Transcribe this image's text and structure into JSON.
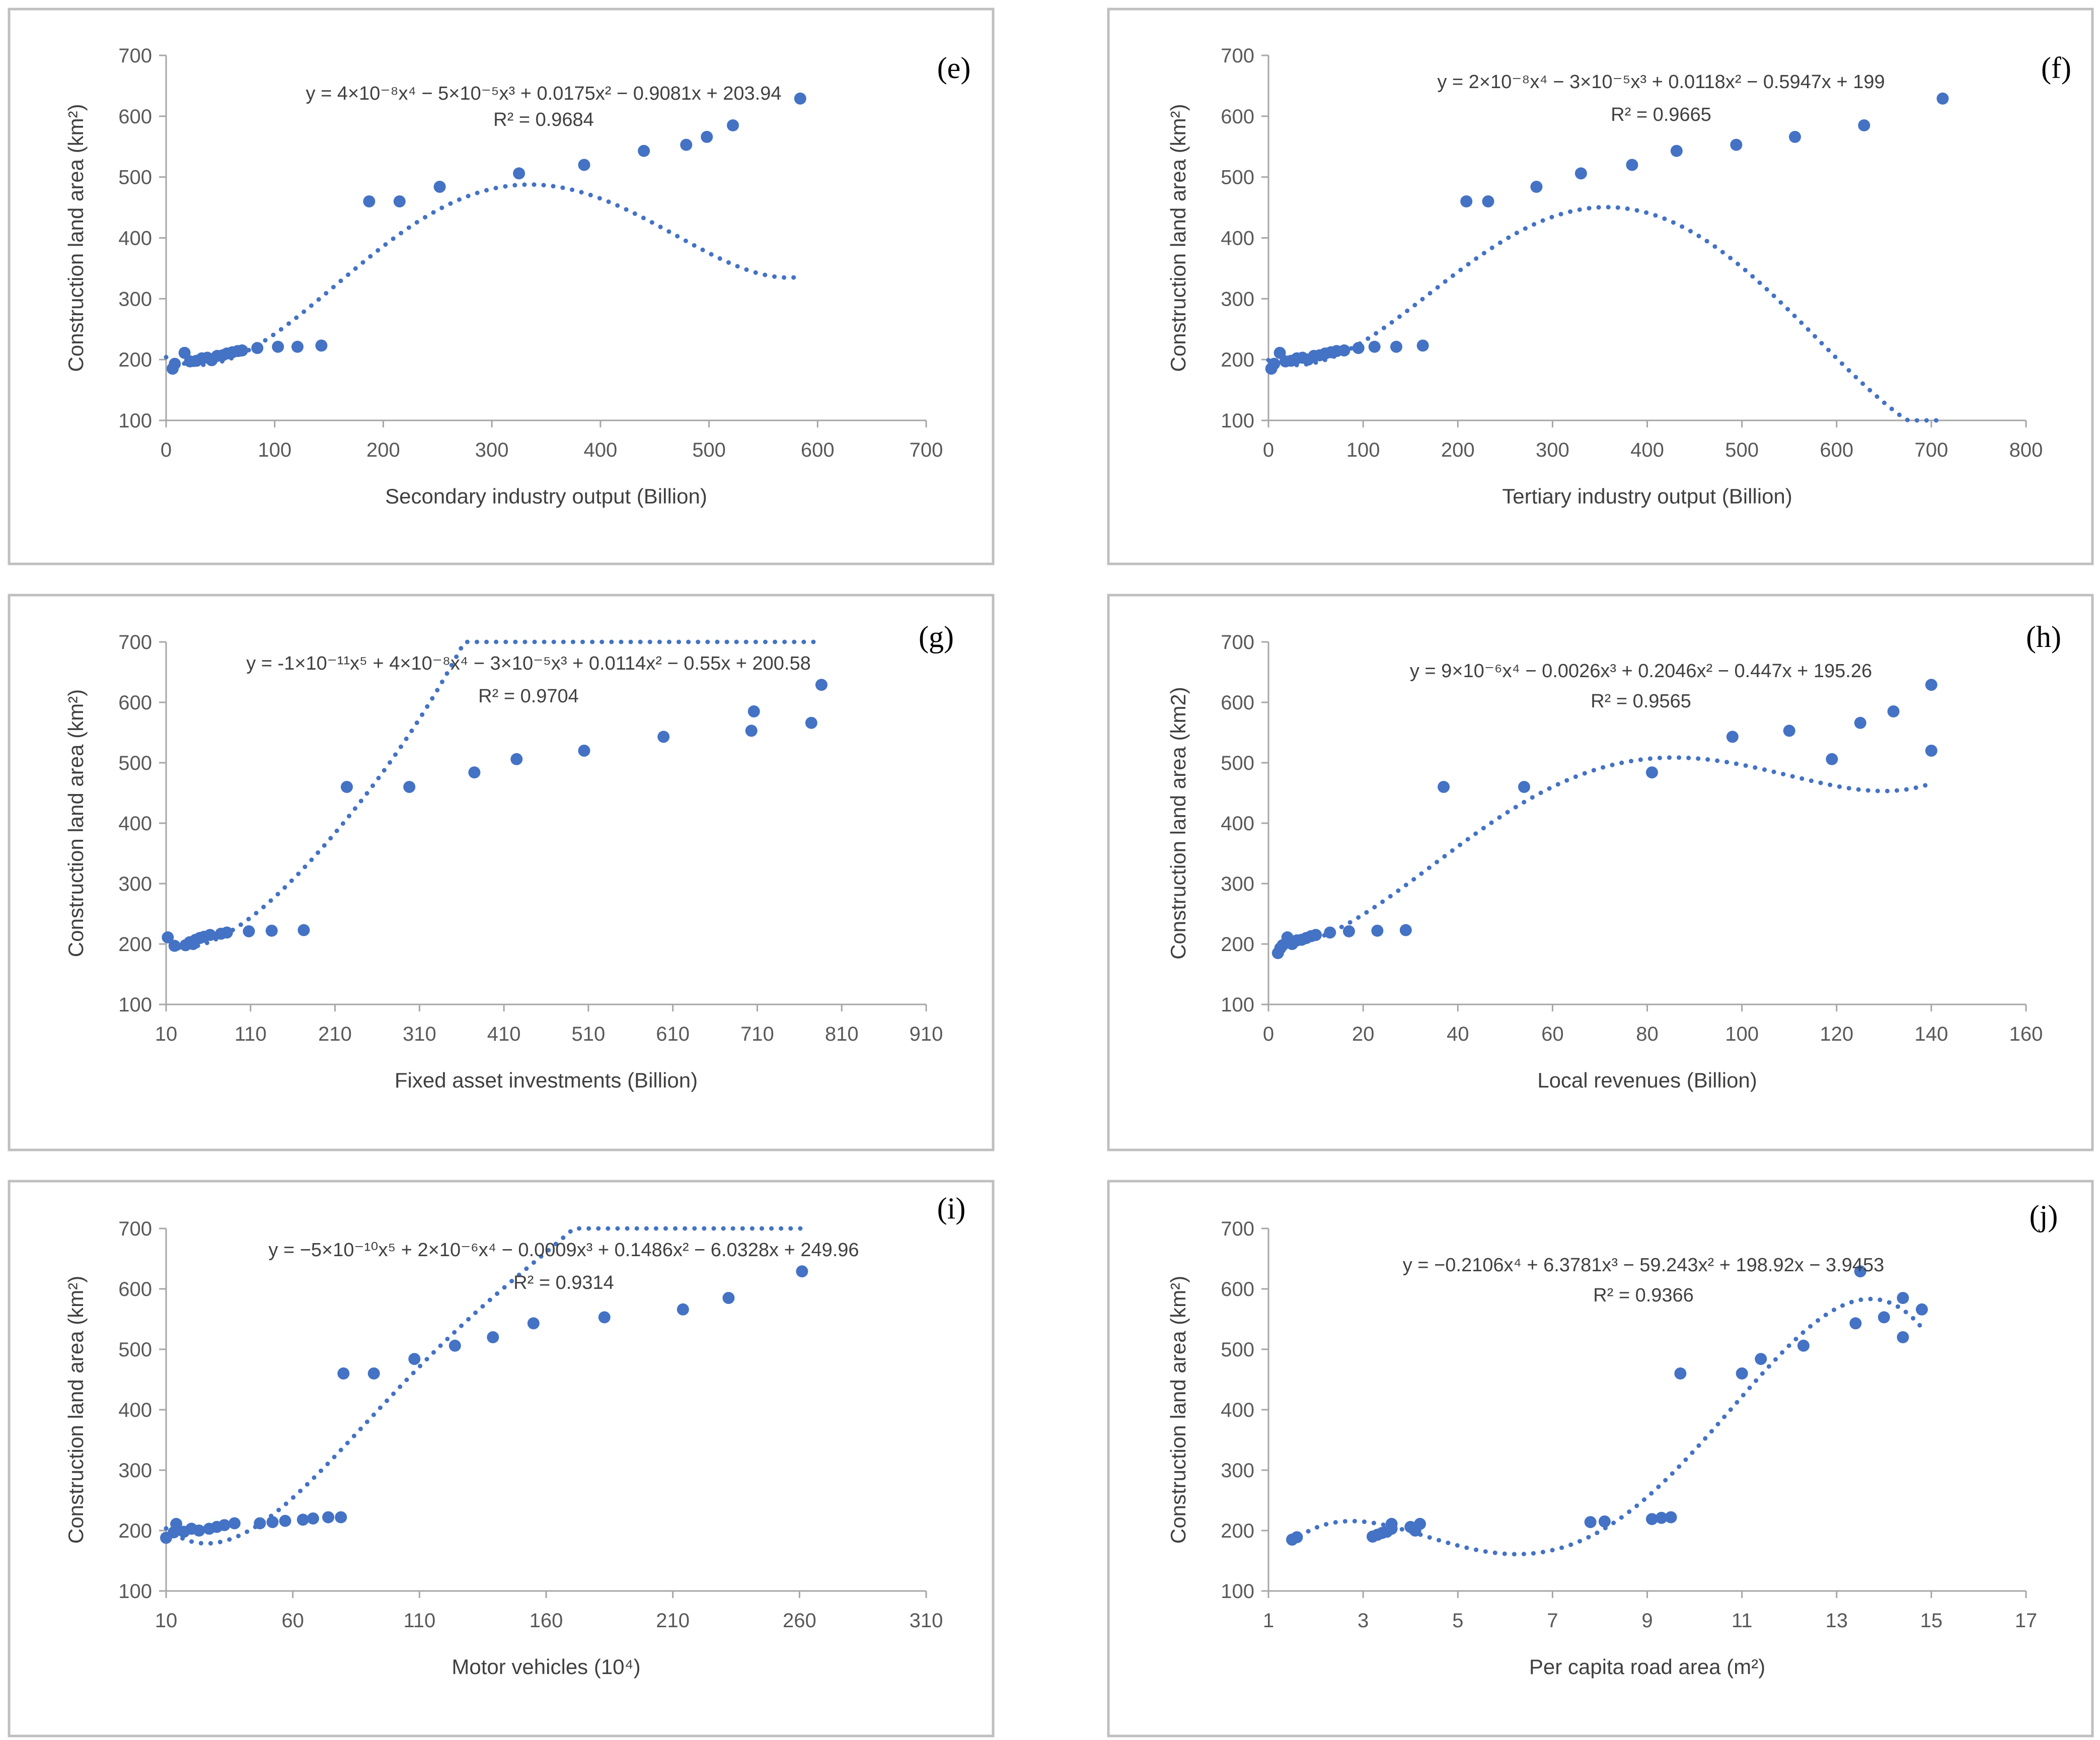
{
  "colors": {
    "marker": "#4472C4",
    "trend": "#4472C4",
    "axis": "#a6a6a6",
    "frame": "#bfbfbf",
    "text": "#404040"
  },
  "chart_data": [
    {
      "type": "scatter",
      "panel_label": "(e)",
      "xlabel": "Secondary industry output (Billion)",
      "ylabel": "Construction land area (km²)",
      "xlim": [
        0,
        700
      ],
      "xticks": [
        0,
        100,
        200,
        300,
        400,
        500,
        600,
        700
      ],
      "ylim": [
        100,
        700
      ],
      "yticks": [
        100,
        200,
        300,
        400,
        500,
        600,
        700
      ],
      "equation": "y = 4×10⁻⁸x⁴ − 5×10⁻⁵x³ + 0.0175x² − 0.9081x + 203.94",
      "r_squared": "R² = 0.9684",
      "trend_coefficients": [
        203.94,
        -0.9081,
        0.0175,
        -5e-05,
        4e-08
      ],
      "trend_range": [
        0,
        585
      ],
      "points": [
        [
          6,
          185
        ],
        [
          8,
          193
        ],
        [
          17,
          211
        ],
        [
          22,
          197
        ],
        [
          28,
          198
        ],
        [
          33,
          202
        ],
        [
          38,
          203
        ],
        [
          42,
          199
        ],
        [
          47,
          206
        ],
        [
          52,
          207
        ],
        [
          56,
          210
        ],
        [
          61,
          212
        ],
        [
          66,
          214
        ],
        [
          70,
          215
        ],
        [
          84,
          219
        ],
        [
          103,
          221
        ],
        [
          121,
          221
        ],
        [
          143,
          223
        ],
        [
          187,
          460
        ],
        [
          215,
          460
        ],
        [
          252,
          484
        ],
        [
          325,
          506
        ],
        [
          385,
          520
        ],
        [
          440,
          543
        ],
        [
          479,
          553
        ],
        [
          498,
          566
        ],
        [
          522,
          585
        ],
        [
          584,
          629
        ]
      ]
    },
    {
      "type": "scatter",
      "panel_label": "(f)",
      "xlabel": "Tertiary industry output (Billion)",
      "ylabel": "Construction land area (km²)",
      "xlim": [
        0,
        800
      ],
      "xticks": [
        0,
        100,
        200,
        300,
        400,
        500,
        600,
        700,
        800
      ],
      "ylim": [
        100,
        700
      ],
      "yticks": [
        100,
        200,
        300,
        400,
        500,
        600,
        700
      ],
      "equation": "y = 2×10⁻⁸x⁴ − 3×10⁻⁵x³ + 0.0118x² − 0.5947x + 199",
      "r_squared": "R² = 0.9665",
      "trend_coefficients": [
        199,
        -0.5947,
        0.0118,
        -3e-05,
        2e-08
      ],
      "trend_range": [
        0,
        715
      ],
      "points": [
        [
          3,
          185
        ],
        [
          6,
          193
        ],
        [
          12,
          211
        ],
        [
          18,
          197
        ],
        [
          24,
          198
        ],
        [
          30,
          202
        ],
        [
          36,
          203
        ],
        [
          42,
          200
        ],
        [
          48,
          206
        ],
        [
          54,
          207
        ],
        [
          60,
          210
        ],
        [
          66,
          212
        ],
        [
          72,
          214
        ],
        [
          80,
          215
        ],
        [
          95,
          219
        ],
        [
          112,
          221
        ],
        [
          135,
          221
        ],
        [
          163,
          223
        ],
        [
          209,
          460
        ],
        [
          232,
          460
        ],
        [
          283,
          484
        ],
        [
          330,
          506
        ],
        [
          384,
          520
        ],
        [
          431,
          543
        ],
        [
          494,
          553
        ],
        [
          556,
          566
        ],
        [
          629,
          585
        ],
        [
          712,
          629
        ]
      ]
    },
    {
      "type": "scatter",
      "panel_label": "(g)",
      "xlabel": "Fixed asset investments (Billion)",
      "ylabel": "Construction land area (km²)",
      "xlim": [
        10,
        910
      ],
      "xticks": [
        10,
        110,
        210,
        310,
        410,
        510,
        610,
        710,
        810,
        910
      ],
      "ylim": [
        100,
        700
      ],
      "yticks": [
        100,
        200,
        300,
        400,
        500,
        600,
        700
      ],
      "equation": "y = -1×10⁻¹¹x⁵ + 4×10⁻⁸x⁴ − 3×10⁻⁵x³ + 0.0114x² − 0.55x + 200.58",
      "r_squared": "R² = 0.9704",
      "trend_coefficients": [
        200.58,
        -0.55,
        0.0114,
        -3e-05,
        4e-08,
        -1e-11
      ],
      "trend_range": [
        25,
        780
      ],
      "points": [
        [
          12,
          211
        ],
        [
          20,
          197
        ],
        [
          33,
          198
        ],
        [
          38,
          203
        ],
        [
          42,
          200
        ],
        [
          45,
          207
        ],
        [
          50,
          210
        ],
        [
          55,
          212
        ],
        [
          62,
          215
        ],
        [
          75,
          217
        ],
        [
          82,
          219
        ],
        [
          108,
          221
        ],
        [
          135,
          222
        ],
        [
          173,
          223
        ],
        [
          224,
          460
        ],
        [
          298,
          460
        ],
        [
          375,
          484
        ],
        [
          425,
          506
        ],
        [
          505,
          520
        ],
        [
          599,
          543
        ],
        [
          703,
          553
        ],
        [
          706,
          585
        ],
        [
          774,
          566
        ],
        [
          786,
          629
        ]
      ]
    },
    {
      "type": "scatter",
      "panel_label": "(h)",
      "xlabel": "Local revenues (Billion)",
      "ylabel": "Construction land area (km2)",
      "xlim": [
        0,
        160
      ],
      "xticks": [
        0,
        20,
        40,
        60,
        80,
        100,
        120,
        140,
        160
      ],
      "ylim": [
        100,
        700
      ],
      "yticks": [
        100,
        200,
        300,
        400,
        500,
        600,
        700
      ],
      "equation": "y = 9×10⁻⁶x⁴ − 0.0026x³ + 0.2046x² − 0.447x + 195.26",
      "r_squared": "R² = 0.9565",
      "trend_coefficients": [
        195.26,
        -0.447,
        0.2046,
        -0.0026,
        9e-06
      ],
      "trend_range": [
        2,
        140
      ],
      "points": [
        [
          2,
          185
        ],
        [
          2.5,
          193
        ],
        [
          3,
          198
        ],
        [
          4,
          211
        ],
        [
          5,
          200
        ],
        [
          6,
          206
        ],
        [
          7,
          207
        ],
        [
          8,
          210
        ],
        [
          9,
          213
        ],
        [
          10,
          215
        ],
        [
          13,
          219
        ],
        [
          17,
          221
        ],
        [
          23,
          222
        ],
        [
          29,
          223
        ],
        [
          37,
          460
        ],
        [
          54,
          460
        ],
        [
          81,
          484
        ],
        [
          98,
          543
        ],
        [
          110,
          553
        ],
        [
          119,
          506
        ],
        [
          125,
          566
        ],
        [
          132,
          585
        ],
        [
          140,
          520
        ],
        [
          140,
          629
        ]
      ]
    },
    {
      "type": "scatter",
      "panel_label": "(i)",
      "xlabel": "Motor vehicles (10⁴)",
      "ylabel": "Construction land area (km²)",
      "xlim": [
        10,
        310
      ],
      "xticks": [
        10,
        60,
        110,
        160,
        210,
        260,
        310
      ],
      "ylim": [
        100,
        700
      ],
      "yticks": [
        100,
        200,
        300,
        400,
        500,
        600,
        700
      ],
      "equation": "y = −5×10⁻¹⁰x⁵ + 2×10⁻⁶x⁴ − 0.0009x³ + 0.1486x² − 6.0328x + 249.96",
      "r_squared": "R² = 0.9314",
      "trend_coefficients": [
        249.96,
        -6.0328,
        0.1486,
        -0.0009,
        2e-06,
        -5e-10
      ],
      "trend_range": [
        10,
        262
      ],
      "points": [
        [
          10,
          188
        ],
        [
          13,
          197
        ],
        [
          14,
          211
        ],
        [
          17,
          198
        ],
        [
          20,
          203
        ],
        [
          23,
          200
        ],
        [
          27,
          203
        ],
        [
          30,
          206
        ],
        [
          33,
          209
        ],
        [
          37,
          212
        ],
        [
          47,
          212
        ],
        [
          52,
          214
        ],
        [
          57,
          216
        ],
        [
          64,
          218
        ],
        [
          68,
          220
        ],
        [
          74,
          222
        ],
        [
          79,
          222
        ],
        [
          80,
          460
        ],
        [
          92,
          460
        ],
        [
          108,
          484
        ],
        [
          124,
          506
        ],
        [
          139,
          520
        ],
        [
          155,
          543
        ],
        [
          183,
          553
        ],
        [
          214,
          566
        ],
        [
          232,
          585
        ],
        [
          261,
          629
        ]
      ]
    },
    {
      "type": "scatter",
      "panel_label": "(j)",
      "xlabel": "Per capita road area (m²)",
      "ylabel": "Construction land area (km²)",
      "xlim": [
        1,
        17
      ],
      "xticks": [
        1,
        3,
        5,
        7,
        9,
        11,
        13,
        15,
        17
      ],
      "ylim": [
        100,
        700
      ],
      "yticks": [
        100,
        200,
        300,
        400,
        500,
        600,
        700
      ],
      "equation": "y = −0.2106x⁴ + 6.3781x³ − 59.243x² + 198.92x − 3.9453",
      "r_squared": "R² = 0.9366",
      "trend_coefficients": [
        -3.9453,
        198.92,
        -59.243,
        6.3781,
        -0.2106
      ],
      "trend_range": [
        1.5,
        14.8
      ],
      "points": [
        [
          1.5,
          185
        ],
        [
          1.6,
          189
        ],
        [
          3.2,
          190
        ],
        [
          3.3,
          193
        ],
        [
          3.4,
          196
        ],
        [
          3.5,
          198
        ],
        [
          3.6,
          203
        ],
        [
          3.6,
          211
        ],
        [
          4.0,
          206
        ],
        [
          4.1,
          200
        ],
        [
          4.2,
          211
        ],
        [
          7.8,
          214
        ],
        [
          8.1,
          215
        ],
        [
          9.1,
          219
        ],
        [
          9.3,
          221
        ],
        [
          9.5,
          222
        ],
        [
          9.7,
          460
        ],
        [
          11.0,
          460
        ],
        [
          11.4,
          484
        ],
        [
          12.3,
          506
        ],
        [
          13.4,
          543
        ],
        [
          13.5,
          629
        ],
        [
          14.0,
          553
        ],
        [
          14.4,
          520
        ],
        [
          14.4,
          585
        ],
        [
          14.8,
          566
        ]
      ]
    }
  ]
}
